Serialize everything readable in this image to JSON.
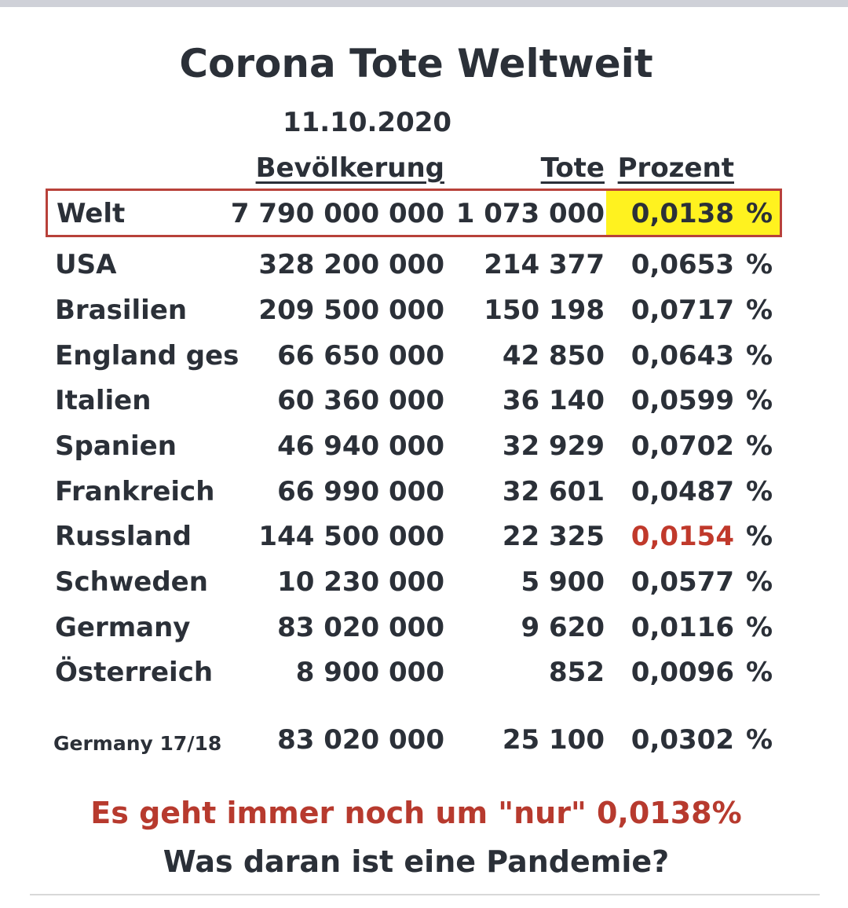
{
  "title": "Corona Tote Weltweit",
  "date": "11.10.2020",
  "headers": {
    "population": "Bevölkerung",
    "deaths": "Tote",
    "percent": "Prozent"
  },
  "unit": "%",
  "highlight_color": "#fff21f",
  "rows": [
    {
      "name": "Welt",
      "population": "7 790 000 000",
      "deaths": "1 073 000",
      "percent": "0,0138"
    },
    {
      "name": "USA",
      "population": "328 200 000",
      "deaths": "214 377",
      "percent": "0,0653"
    },
    {
      "name": "Brasilien",
      "population": "209 500 000",
      "deaths": "150 198",
      "percent": "0,0717"
    },
    {
      "name": "England ges",
      "population": "66 650 000",
      "deaths": "42 850",
      "percent": "0,0643"
    },
    {
      "name": "Italien",
      "population": "60 360 000",
      "deaths": "36 140",
      "percent": "0,0599"
    },
    {
      "name": "Spanien",
      "population": "46 940 000",
      "deaths": "32 929",
      "percent": "0,0702"
    },
    {
      "name": "Frankreich",
      "population": "66 990 000",
      "deaths": "32 601",
      "percent": "0,0487"
    },
    {
      "name": "Russland",
      "population": "144 500 000",
      "deaths": "22 325",
      "percent": "0,0154"
    },
    {
      "name": "Schweden",
      "population": "10 230 000",
      "deaths": "5 900",
      "percent": "0,0577"
    },
    {
      "name": "Germany",
      "population": "83 020 000",
      "deaths": "9 620",
      "percent": "0,0116"
    },
    {
      "name": "Österreich",
      "population": "8 900 000",
      "deaths": "852",
      "percent": "0,0096"
    },
    {
      "name": "Germany 17/18",
      "population": "83 020 000",
      "deaths": "25 100",
      "percent": "0,0302"
    }
  ],
  "footer_line1": "Es geht immer noch um \"nur\" 0,0138%",
  "footer_line2": "Was daran ist eine Pandemie?"
}
